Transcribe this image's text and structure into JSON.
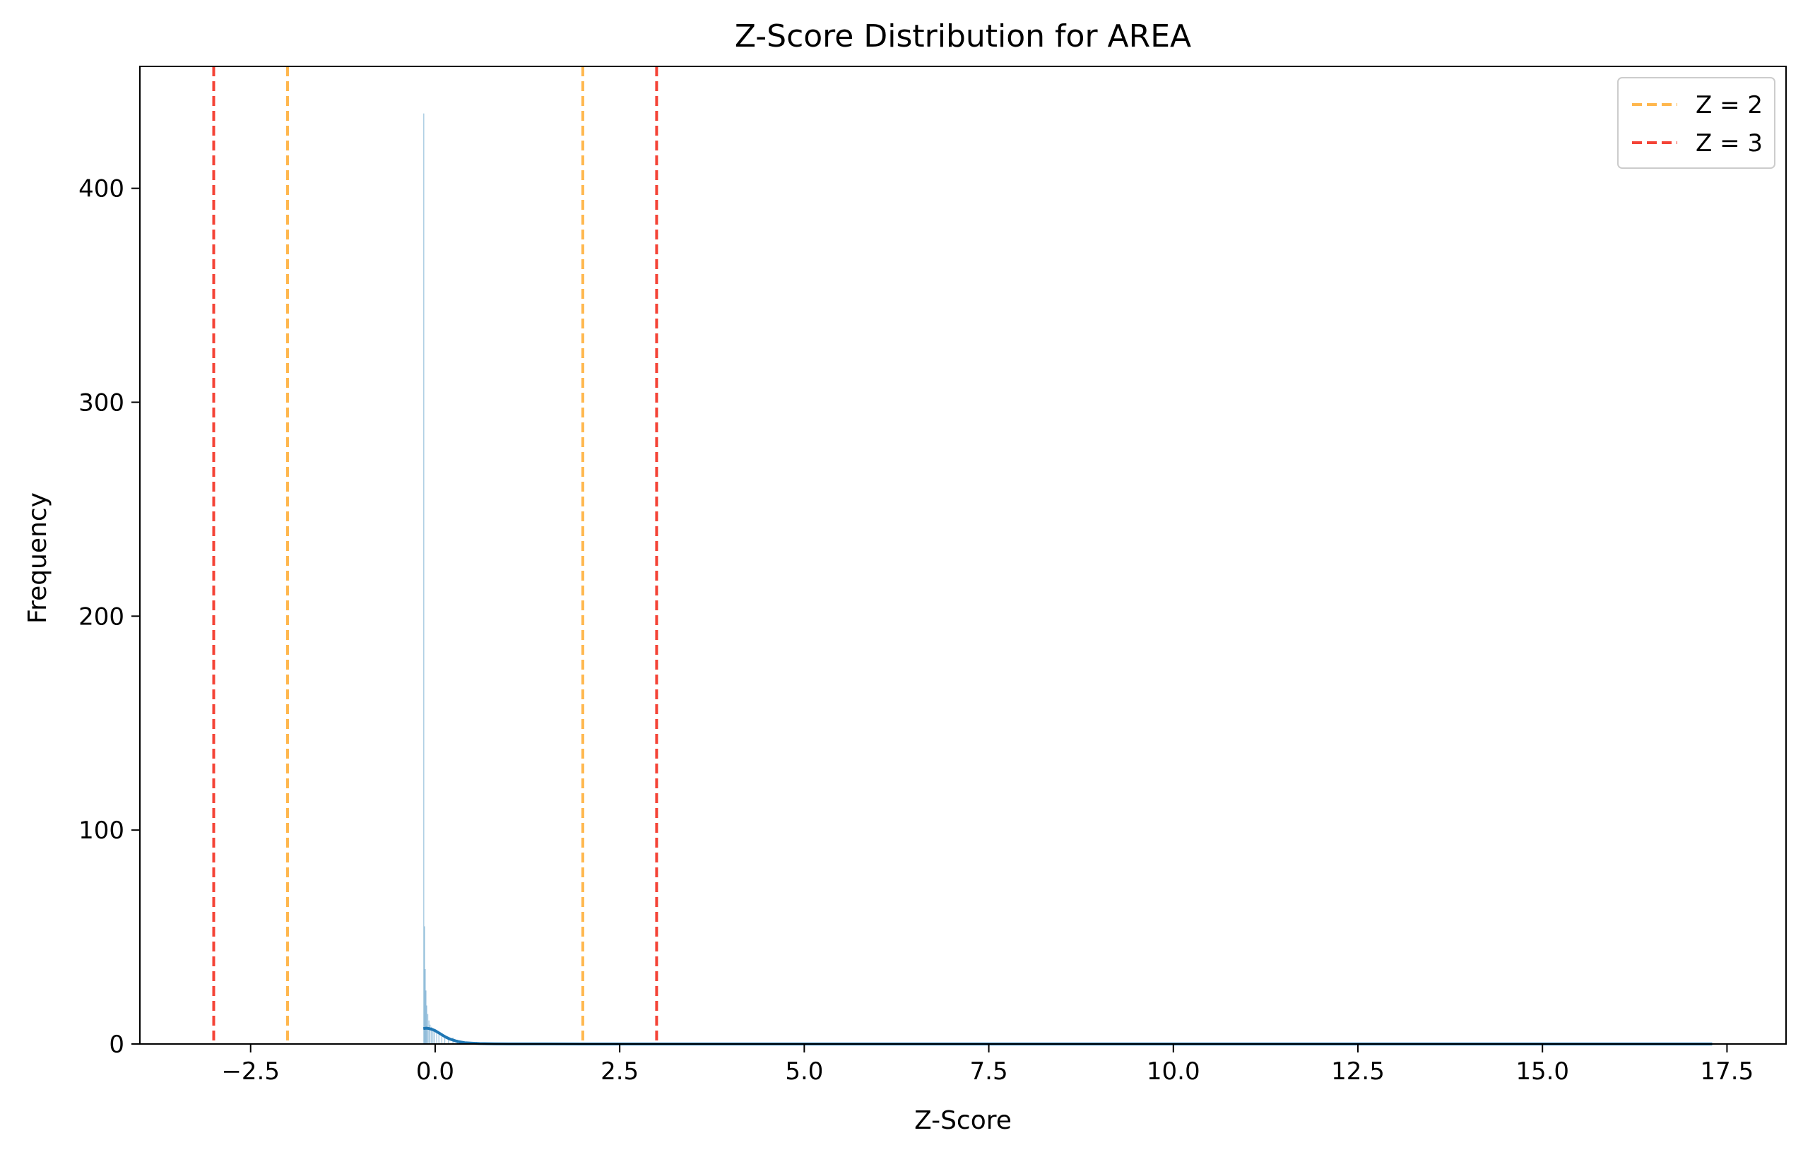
{
  "chart_data": {
    "type": "histogram",
    "title": "Z-Score Distribution for AREA",
    "xlabel": "Z-Score",
    "ylabel": "Frequency",
    "xlim": [
      -4.0,
      18.3
    ],
    "ylim": [
      0,
      457
    ],
    "xticks": [
      -2.5,
      0.0,
      2.5,
      5.0,
      7.5,
      10.0,
      12.5,
      15.0,
      17.5
    ],
    "xtick_labels": [
      "−2.5",
      "0.0",
      "2.5",
      "5.0",
      "7.5",
      "10.0",
      "12.5",
      "15.0",
      "17.5"
    ],
    "yticks": [
      0,
      100,
      200,
      300,
      400
    ],
    "ytick_labels": [
      "0",
      "100",
      "200",
      "300",
      "400"
    ],
    "grid": false,
    "histogram": {
      "color": "#1f77b4",
      "bins": [
        {
          "x": -0.155,
          "count": 435
        },
        {
          "x": -0.145,
          "count": 55
        },
        {
          "x": -0.135,
          "count": 35
        },
        {
          "x": -0.125,
          "count": 25
        },
        {
          "x": -0.115,
          "count": 18
        },
        {
          "x": -0.1,
          "count": 14
        },
        {
          "x": -0.085,
          "count": 11
        },
        {
          "x": -0.07,
          "count": 9
        },
        {
          "x": -0.05,
          "count": 8
        },
        {
          "x": -0.03,
          "count": 7
        },
        {
          "x": -0.01,
          "count": 7
        },
        {
          "x": 0.02,
          "count": 6
        },
        {
          "x": 0.05,
          "count": 5
        },
        {
          "x": 0.09,
          "count": 5
        },
        {
          "x": 0.13,
          "count": 4
        },
        {
          "x": 0.18,
          "count": 3
        },
        {
          "x": 0.24,
          "count": 3
        },
        {
          "x": 0.3,
          "count": 2
        },
        {
          "x": 0.38,
          "count": 1
        },
        {
          "x": 0.46,
          "count": 1
        },
        {
          "x": 0.56,
          "count": 1
        }
      ],
      "bin_width": 0.01
    },
    "kde": {
      "color": "#1f77b4",
      "x": [
        -0.16,
        -0.12,
        -0.08,
        -0.04,
        0.0,
        0.05,
        0.1,
        0.15,
        0.2,
        0.3,
        0.4,
        0.5,
        0.6,
        0.8,
        1.0,
        1.5,
        2.0,
        3.0,
        5.0,
        8.0,
        12.0,
        17.3
      ],
      "y": [
        7.2,
        7.4,
        7.2,
        6.8,
        6.2,
        5.2,
        4.1,
        3.1,
        2.3,
        1.2,
        0.6,
        0.35,
        0.2,
        0.08,
        0.04,
        0.02,
        0.01,
        0.005,
        0.003,
        0.002,
        0.001,
        0.001
      ]
    },
    "reference_lines": [
      {
        "x": -3,
        "color": "#f44336",
        "label": "Z = 3"
      },
      {
        "x": -2,
        "color": "#ffb74d",
        "label": "Z = 2"
      },
      {
        "x": 2,
        "color": "#ffb74d",
        "label": "Z = 2"
      },
      {
        "x": 3,
        "color": "#f44336",
        "label": "Z = 3"
      }
    ],
    "legend": {
      "position": "top-right",
      "entries": [
        {
          "label": "Z = 2",
          "color": "#ffb74d"
        },
        {
          "label": "Z = 3",
          "color": "#f44336"
        }
      ]
    }
  }
}
